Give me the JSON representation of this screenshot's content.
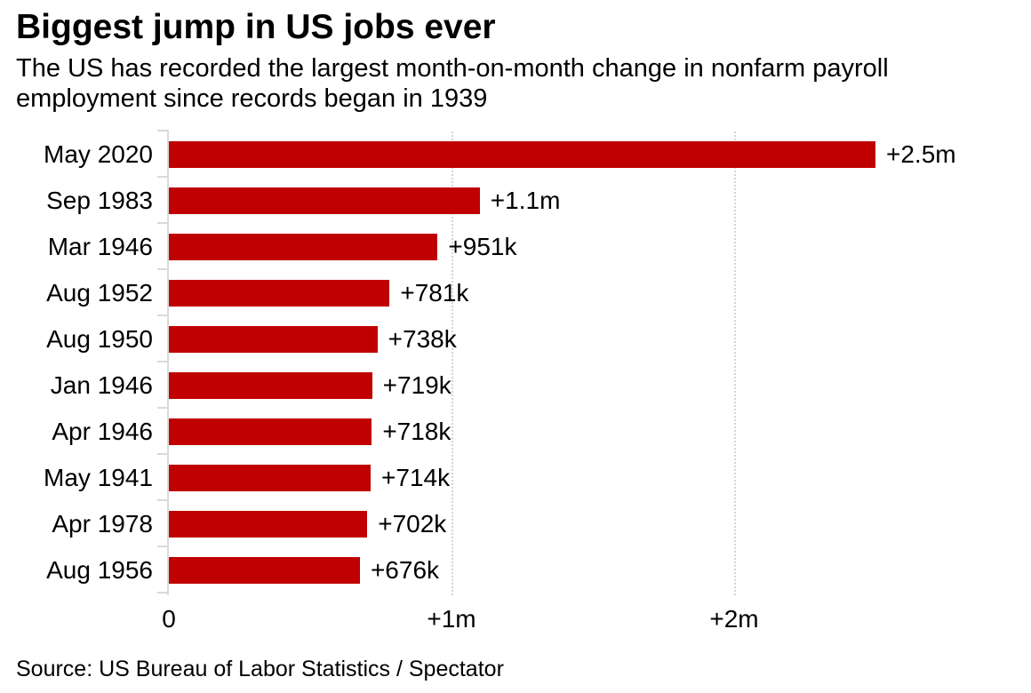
{
  "header": {
    "title": "Biggest jump in US jobs ever",
    "subtitle": "The US has recorded the largest month-on-month change in nonfarm payroll employment since records began in 1939"
  },
  "source": "Source: US Bureau of Labor Statistics / Spectator",
  "colors": {
    "bar": "#c00000",
    "axis": "#d9d9d9",
    "gridline": "#d4d4d4",
    "text": "#000000"
  },
  "chart_data": {
    "type": "bar",
    "orientation": "horizontal",
    "title": "Biggest jump in US jobs ever",
    "subtitle": "The US has recorded the largest month-on-month change in nonfarm payroll employment since records began in 1939",
    "categories": [
      "May 2020",
      "Sep 1983",
      "Mar 1946",
      "Aug 1952",
      "Aug 1950",
      "Jan 1946",
      "Apr 1946",
      "May 1941",
      "Apr 1978",
      "Aug 1956"
    ],
    "values_millions": [
      2.5,
      1.1,
      0.951,
      0.781,
      0.738,
      0.719,
      0.718,
      0.714,
      0.702,
      0.676
    ],
    "value_labels": [
      "+2.5m",
      "+1.1m",
      "+951k",
      "+781k",
      "+738k",
      "+719k",
      "+718k",
      "+714k",
      "+702k",
      "+676k"
    ],
    "x_ticks": [
      {
        "label": "0",
        "value": 0
      },
      {
        "label": "+1m",
        "value": 1
      },
      {
        "label": "+2m",
        "value": 2
      }
    ],
    "xlim": [
      0,
      3.05
    ],
    "xlabel": "",
    "ylabel": "",
    "grid": "vertical-dotted",
    "legend": "none"
  }
}
